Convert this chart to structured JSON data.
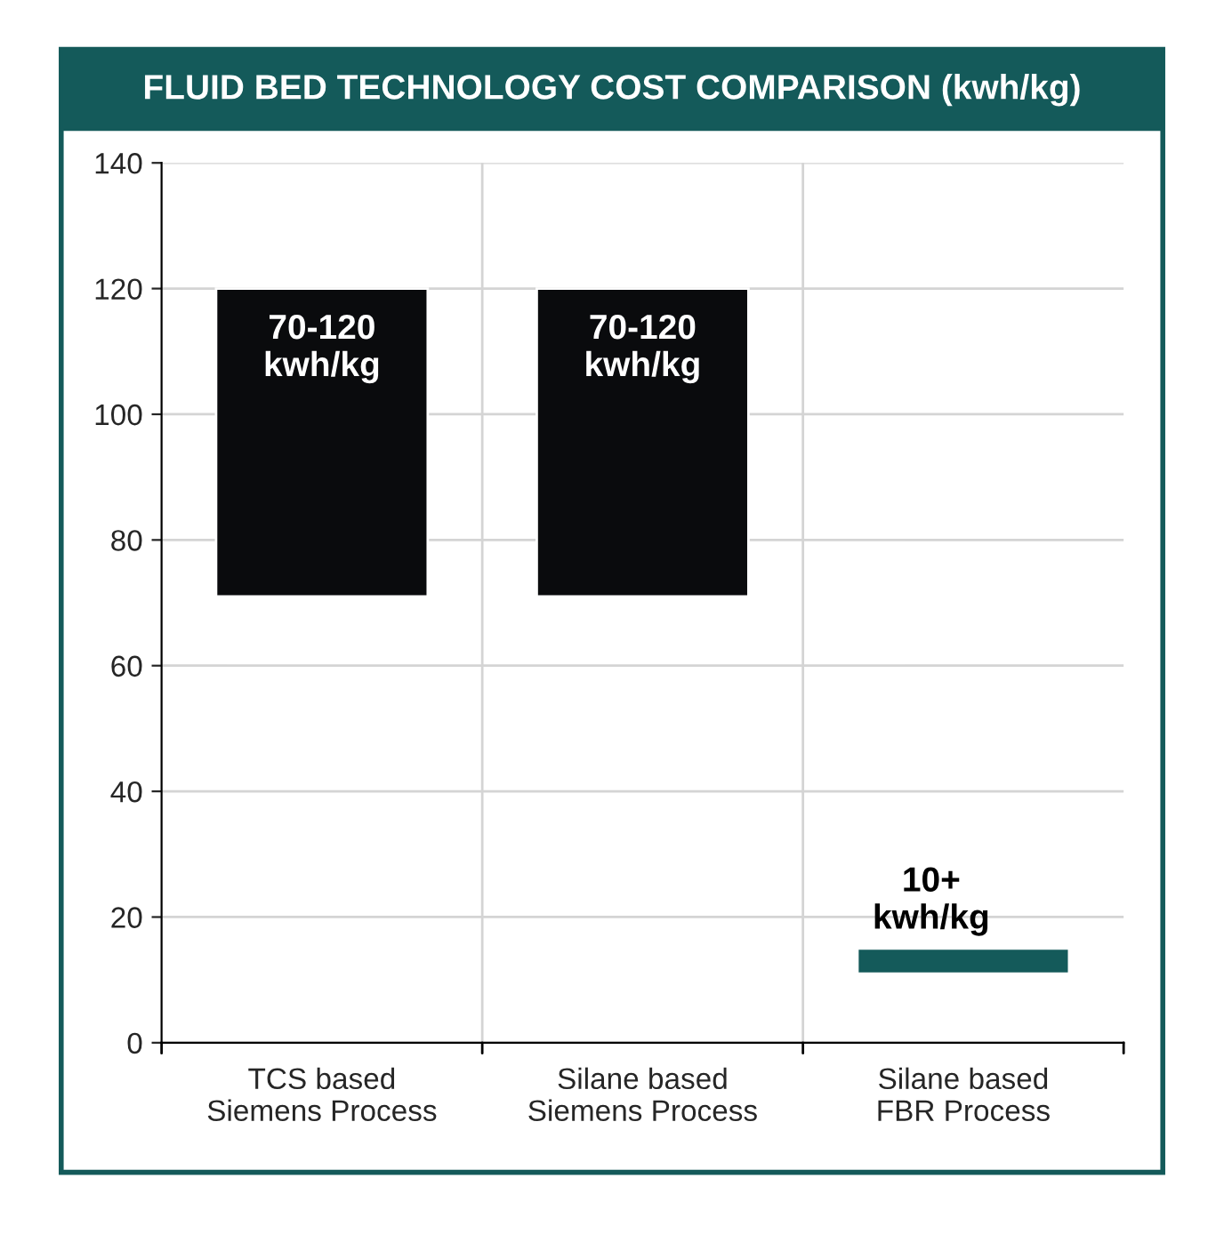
{
  "chart_data": {
    "type": "bar",
    "title": "FLUID BED TECHNOLOGY COST COMPARISON (kwh/kg)",
    "categories": [
      "TCS based\nSiemens Process",
      "Silane based\nSiemens Process",
      "Silane based\nFBR Process"
    ],
    "values": [
      49,
      49,
      4
    ],
    "base": [
      71,
      71,
      11
    ],
    "colors": [
      "#0a0b0d",
      "#0a0b0d",
      "#145a5a"
    ],
    "value_labels": [
      "70-120\nkwh/kg",
      "70-120\nkwh/kg",
      "10+\nkwh/kg"
    ],
    "ylim": [
      0,
      140
    ],
    "yticks": [
      0,
      20,
      40,
      60,
      80,
      100,
      120,
      140
    ],
    "grid": true
  }
}
